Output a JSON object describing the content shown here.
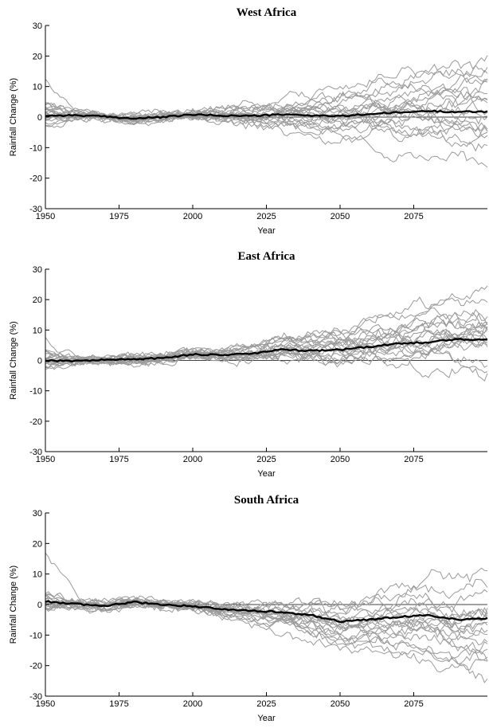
{
  "chart_data": [
    {
      "type": "line",
      "title": "West Africa",
      "xlabel": "Year",
      "ylabel": "Rainfall Change (%)",
      "xlim": [
        1950,
        2100
      ],
      "ylim": [
        -30,
        30
      ],
      "xticks": [
        1950,
        1975,
        2000,
        2025,
        2050,
        2075
      ],
      "yticks": [
        -30,
        -20,
        -10,
        0,
        10,
        20,
        30
      ],
      "zero_line": true,
      "ensemble": {
        "count": 20,
        "color": "#9a9a9a",
        "members_final_values": [
          20,
          18,
          15,
          13,
          11,
          9,
          8,
          6,
          5,
          4,
          2,
          1,
          0,
          -1,
          -2,
          -4,
          -6,
          -8,
          -10,
          -15
        ],
        "start_spread": 4,
        "notable_start_value": 12
      },
      "mean": {
        "color": "#000000",
        "x": [
          1950,
          1960,
          1970,
          1980,
          1990,
          2000,
          2010,
          2020,
          2030,
          2040,
          2050,
          2060,
          2070,
          2080,
          2090,
          2100
        ],
        "y": [
          0.5,
          0.6,
          0.2,
          -0.5,
          0,
          0.8,
          0.5,
          0.4,
          0.8,
          0.6,
          0.3,
          1.0,
          1.5,
          2.0,
          1.7,
          1.8
        ]
      }
    },
    {
      "type": "line",
      "title": "East Africa",
      "xlabel": "Year",
      "ylabel": "Rainfall Change (%)",
      "xlim": [
        1950,
        2100
      ],
      "ylim": [
        -30,
        30
      ],
      "xticks": [
        1950,
        1975,
        2000,
        2025,
        2050,
        2075
      ],
      "yticks": [
        -30,
        -20,
        -10,
        0,
        10,
        20,
        30
      ],
      "zero_line": true,
      "ensemble": {
        "count": 20,
        "color": "#9a9a9a",
        "members_final_values": [
          25,
          23,
          16,
          15,
          14,
          13,
          12,
          11,
          10,
          9,
          8,
          7,
          7,
          6,
          5,
          4,
          3,
          1,
          -1,
          -3
        ],
        "start_spread": 3,
        "notable_start_value": 7
      },
      "mean": {
        "color": "#000000",
        "x": [
          1950,
          1960,
          1970,
          1980,
          1990,
          2000,
          2010,
          2020,
          2030,
          2040,
          2050,
          2060,
          2070,
          2080,
          2090,
          2100
        ],
        "y": [
          0,
          -0.2,
          0.2,
          0.4,
          0.8,
          2.0,
          1.8,
          2.2,
          3.5,
          3.2,
          3.5,
          4.5,
          5.5,
          6.0,
          7.0,
          6.8
        ]
      }
    },
    {
      "type": "line",
      "title": "South Africa",
      "xlabel": "Year",
      "ylabel": "Rainfall Change (%)",
      "xlim": [
        1950,
        2100
      ],
      "ylim": [
        -30,
        30
      ],
      "xticks": [
        1950,
        1975,
        2000,
        2025,
        2050,
        2075
      ],
      "yticks": [
        -30,
        -20,
        -10,
        0,
        10,
        20,
        30
      ],
      "zero_line": true,
      "ensemble": {
        "count": 20,
        "color": "#9a9a9a",
        "members_final_values": [
          9,
          6,
          3,
          0,
          -2,
          -3,
          -4,
          -5,
          -6,
          -7,
          -8,
          -9,
          -10,
          -11,
          -12,
          -13,
          -15,
          -17,
          -20,
          -26
        ],
        "start_spread": 4,
        "notable_start_value": 16
      },
      "mean": {
        "color": "#000000",
        "x": [
          1950,
          1960,
          1970,
          1980,
          1990,
          2000,
          2010,
          2020,
          2030,
          2040,
          2050,
          2060,
          2070,
          2080,
          2090,
          2100
        ],
        "y": [
          1.0,
          0.2,
          -0.5,
          0.8,
          0,
          -0.5,
          -1.5,
          -2.0,
          -2.5,
          -3.5,
          -5.5,
          -5.0,
          -4.0,
          -3.5,
          -5.0,
          -4.5
        ]
      }
    }
  ]
}
